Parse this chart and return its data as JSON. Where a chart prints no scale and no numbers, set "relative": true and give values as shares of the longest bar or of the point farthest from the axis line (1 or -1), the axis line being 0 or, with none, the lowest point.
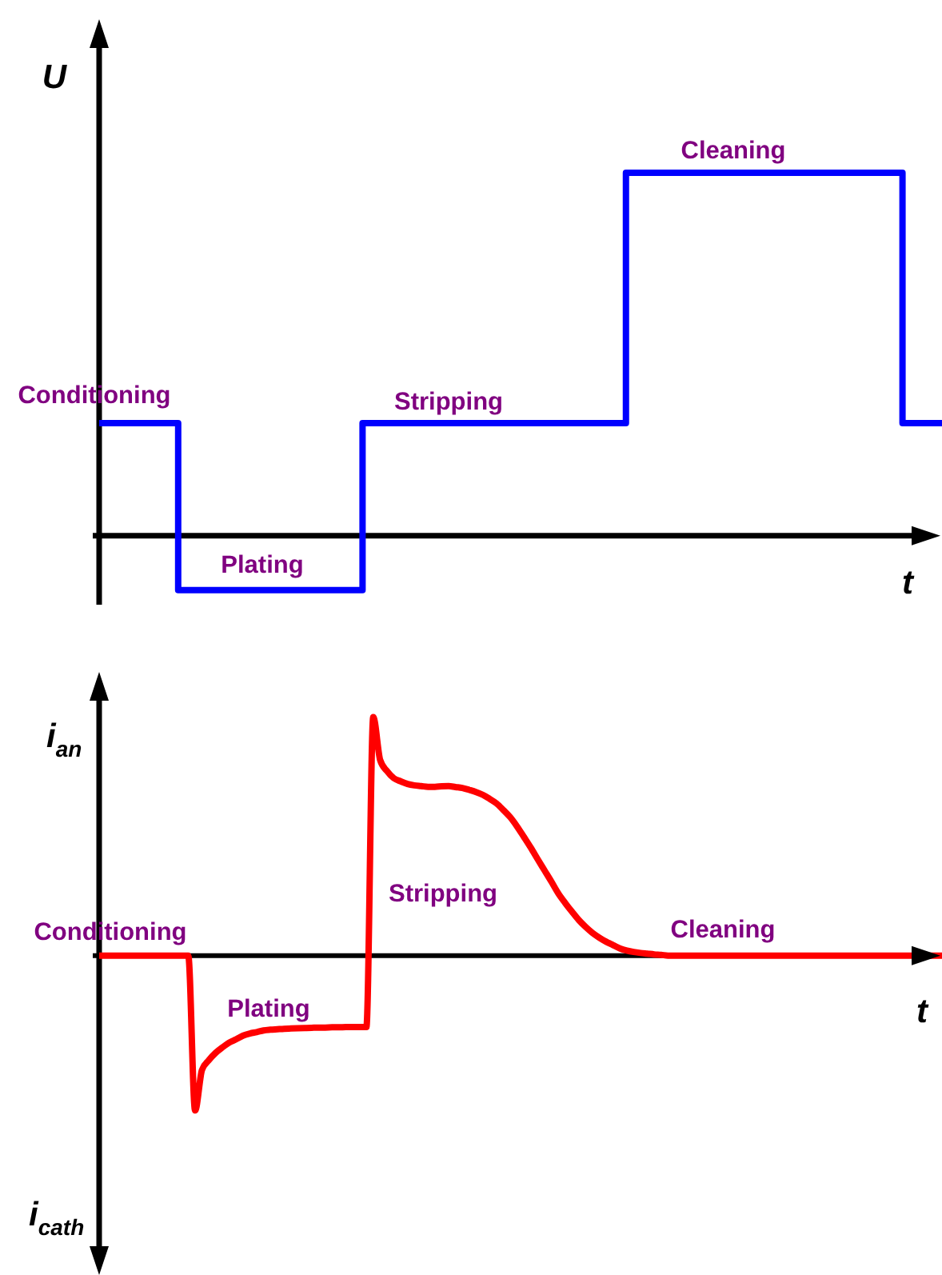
{
  "chart_data": [
    {
      "type": "step",
      "ylabel": "U",
      "xlabel": "t",
      "relative": true,
      "tick_labels": false,
      "color": "#0000ff",
      "categories": [
        null,
        null,
        null,
        null,
        null,
        null,
        null,
        null,
        null,
        null,
        null,
        null,
        null,
        null,
        null,
        null,
        null,
        null,
        null,
        null,
        null,
        null,
        null,
        null,
        null,
        null,
        null,
        null,
        null,
        null,
        null,
        null,
        null,
        null,
        null,
        null,
        null,
        null,
        null,
        null,
        null,
        null,
        null,
        null,
        null,
        null,
        null,
        null,
        null,
        null,
        null,
        null,
        null,
        null,
        null,
        null,
        null,
        null,
        null,
        null,
        null,
        null,
        null,
        null,
        null
      ],
      "values": [
        0.31,
        0.31,
        0.31,
        0.31,
        0.31,
        0.31,
        -0.15,
        -0.15,
        -0.15,
        -0.15,
        -0.15,
        -0.15,
        -0.15,
        -0.15,
        -0.15,
        -0.15,
        -0.15,
        -0.15,
        -0.15,
        -0.15,
        0.31,
        0.31,
        0.31,
        0.31,
        0.31,
        0.31,
        0.31,
        0.31,
        0.31,
        0.31,
        0.31,
        0.31,
        0.31,
        0.31,
        0.31,
        0.31,
        0.31,
        0.31,
        0.31,
        0.31,
        1,
        1,
        1,
        1,
        1,
        1,
        1,
        1,
        1,
        1,
        1,
        1,
        1,
        1,
        1,
        1,
        1,
        1,
        1,
        1,
        1,
        0.31,
        0.31,
        0.31,
        0.31
      ],
      "annotations": [
        "Conditioning",
        "Plating",
        "Stripping",
        "Cleaning"
      ]
    },
    {
      "type": "line",
      "ylabel": "i$_{an}$",
      "xlabel": "t",
      "relative": true,
      "tick_labels": false,
      "color": "#ff0000",
      "categories": [
        null,
        null,
        null,
        null,
        null,
        null,
        null,
        null,
        null,
        null,
        null,
        null,
        null,
        null,
        null,
        null,
        null,
        null,
        null,
        null,
        null,
        null,
        null,
        null,
        null,
        null,
        null,
        null,
        null,
        null,
        null,
        null,
        null,
        null,
        null,
        null,
        null,
        null,
        null,
        null,
        null,
        null,
        null,
        null,
        null,
        null,
        null,
        null,
        null,
        null,
        null,
        null,
        null,
        null,
        null,
        null,
        null,
        null,
        null,
        null,
        null,
        null,
        null,
        null,
        null,
        null,
        null,
        null,
        null,
        null,
        null,
        null,
        null,
        null,
        null,
        null,
        null,
        null,
        null,
        null,
        null,
        null,
        null,
        null,
        null,
        null,
        null,
        null,
        null,
        null,
        null,
        null,
        null,
        null,
        null,
        null,
        null,
        null,
        null,
        null,
        null,
        null,
        null,
        null,
        null,
        null,
        null,
        null,
        null,
        null,
        null,
        null,
        null,
        null,
        null,
        null,
        null,
        null,
        null,
        null,
        null,
        null,
        null,
        null
      ],
      "values": [
        0,
        0,
        0,
        0,
        0,
        0,
        0,
        0,
        0,
        0,
        0,
        0,
        0,
        0,
        -0.65,
        -0.48,
        -0.439,
        -0.408,
        -0.385,
        -0.365,
        -0.351,
        -0.336,
        -0.327,
        -0.321,
        -0.314,
        -0.311,
        -0.309,
        -0.307,
        -0.306,
        -0.305,
        -0.304,
        -0.303,
        -0.302,
        -0.302,
        -0.301,
        -0.301,
        -0.3,
        -0.3,
        -0.3,
        -0.3,
        1,
        0.821,
        0.774,
        0.744,
        0.731,
        0.72,
        0.714,
        0.711,
        0.708,
        0.708,
        0.71,
        0.711,
        0.707,
        0.703,
        0.695,
        0.686,
        0.674,
        0.657,
        0.638,
        0.61,
        0.58,
        0.541,
        0.497,
        0.452,
        0.404,
        0.357,
        0.31,
        0.261,
        0.221,
        0.184,
        0.149,
        0.12,
        0.095,
        0.075,
        0.058,
        0.044,
        0.03,
        0.021,
        0.015,
        0.011,
        0.008,
        0.005,
        0.003,
        0,
        0,
        0,
        0,
        0,
        0,
        0,
        0,
        0,
        0,
        0,
        0,
        0,
        0,
        0,
        0,
        0,
        0,
        0,
        0,
        0,
        0,
        0,
        0,
        0,
        0,
        0,
        0,
        0,
        0,
        0,
        0,
        0,
        0,
        0,
        0,
        0,
        0,
        0,
        0,
        0
      ],
      "annotations": [
        "Conditioning",
        "Plating",
        "Stripping",
        "Cleaning",
        "i$_{cath}$"
      ]
    }
  ]
}
